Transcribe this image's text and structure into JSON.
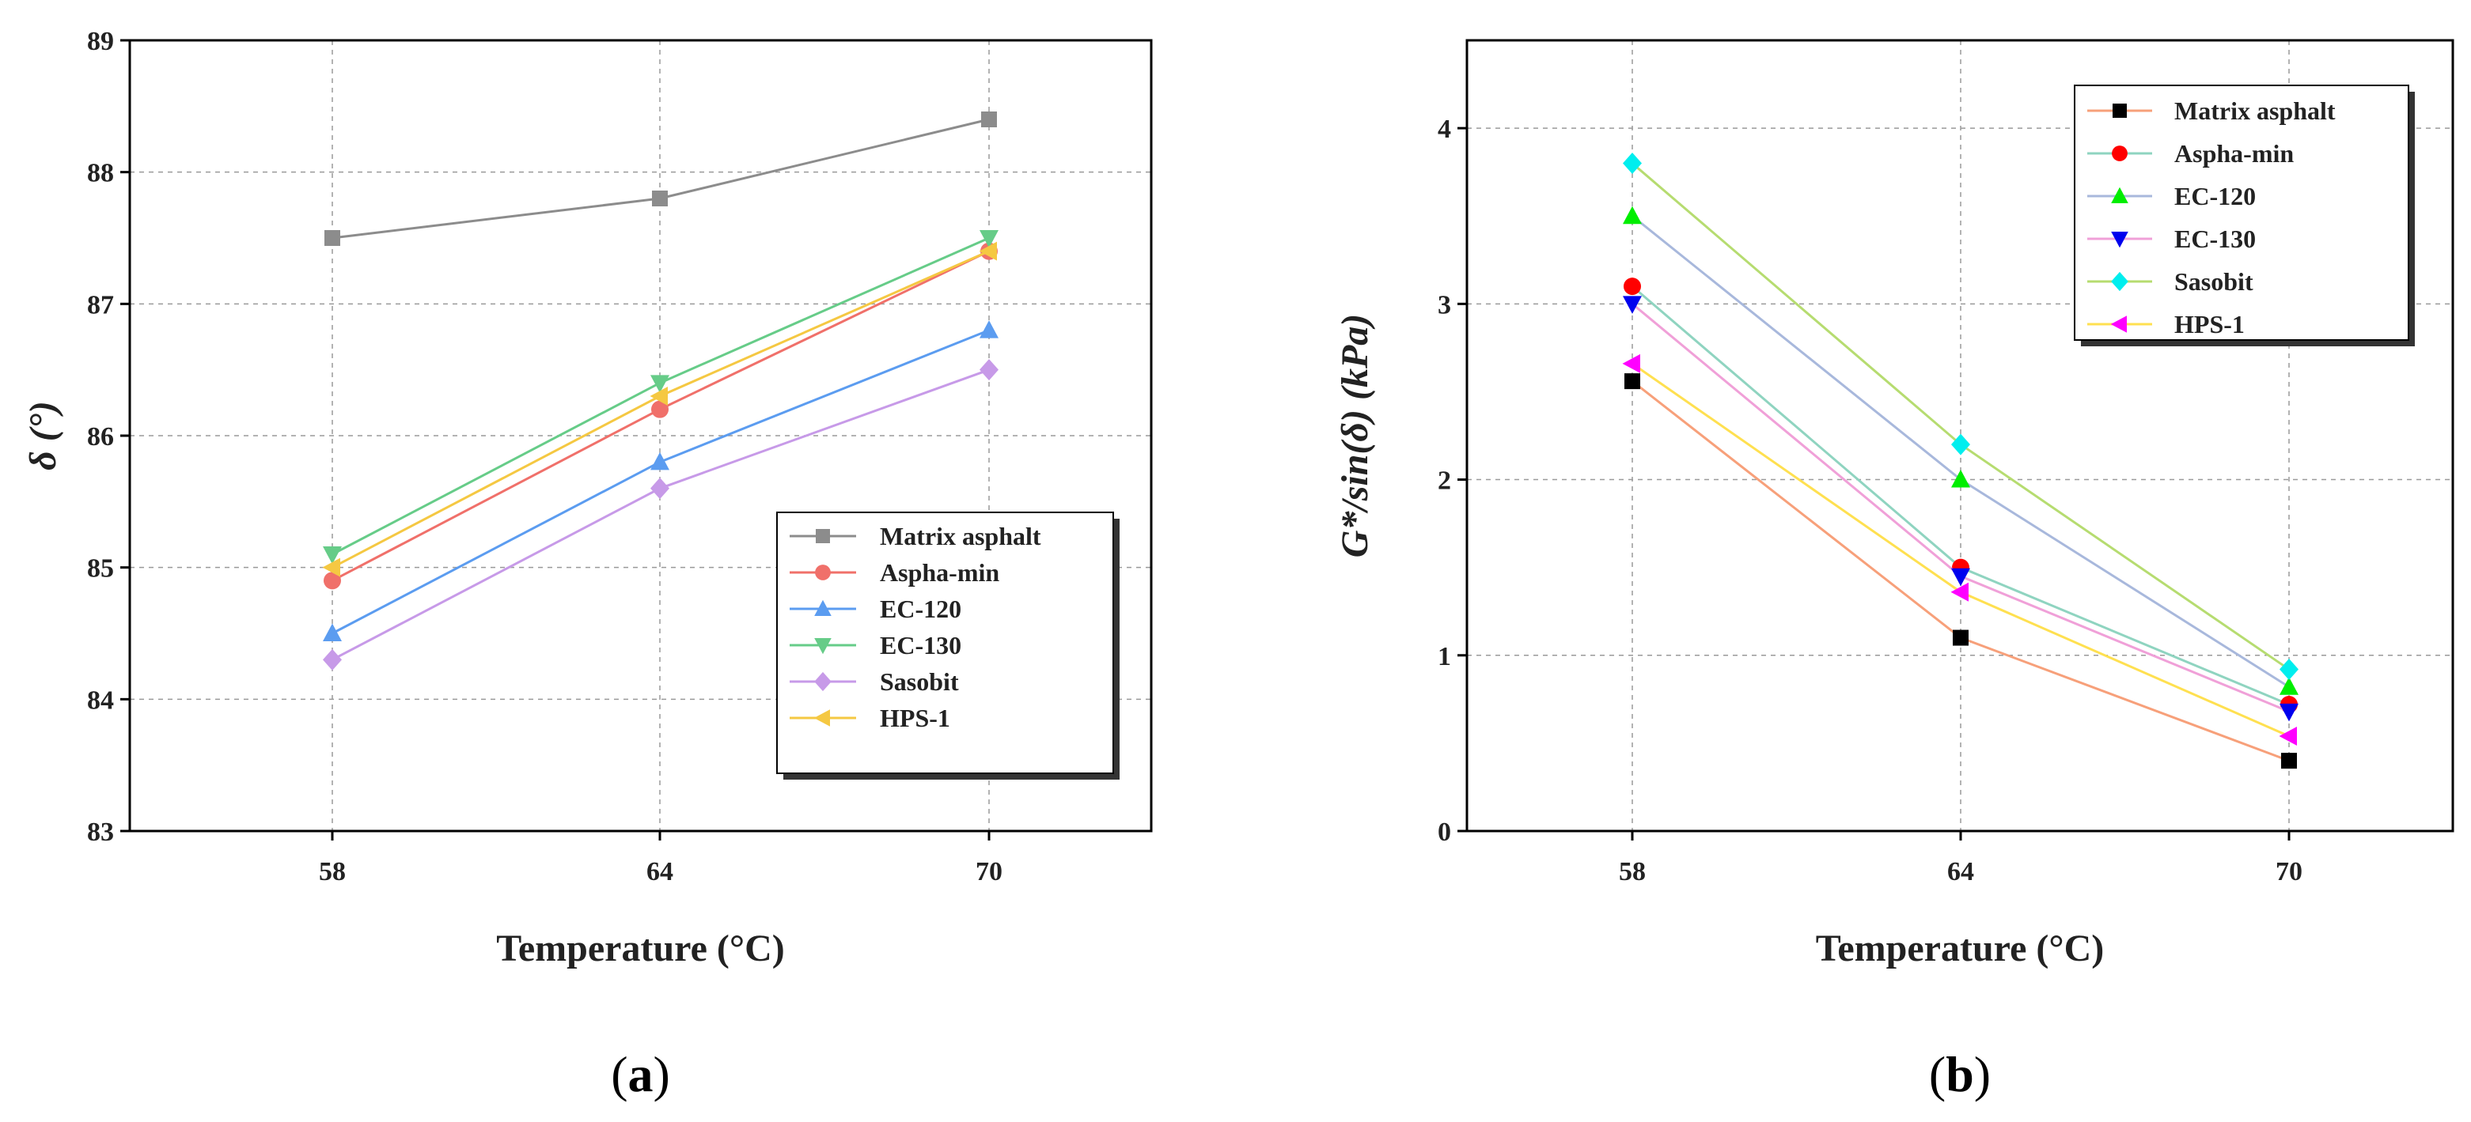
{
  "chart_data": [
    {
      "type": "line",
      "panel_label": "a",
      "categories": [
        "58",
        "64",
        "70"
      ],
      "xlabel": "Temperature (°C)",
      "ylabel": "δ (°)",
      "ylim": [
        83,
        89
      ],
      "yticks": [
        "83",
        "84",
        "85",
        "86",
        "87",
        "88",
        "89"
      ],
      "grid": true,
      "legend_position": "bottom-right",
      "series": [
        {
          "name": "Matrix asphalt",
          "values": [
            87.5,
            87.8,
            88.4
          ],
          "color": "#8c8c8c",
          "marker": "square"
        },
        {
          "name": "Aspha-min",
          "values": [
            84.9,
            86.2,
            87.4
          ],
          "color": "#f0706a",
          "marker": "circle"
        },
        {
          "name": "EC-120",
          "values": [
            84.5,
            85.8,
            86.8
          ],
          "color": "#5b9cf0",
          "marker": "triangle-up"
        },
        {
          "name": "EC-130",
          "values": [
            85.1,
            86.4,
            87.5
          ],
          "color": "#66cc88",
          "marker": "triangle-down"
        },
        {
          "name": "Sasobit",
          "values": [
            84.3,
            85.6,
            86.5
          ],
          "color": "#c79ae8",
          "marker": "diamond"
        },
        {
          "name": "HPS-1",
          "values": [
            85.0,
            86.3,
            87.4
          ],
          "color": "#f5c842",
          "marker": "triangle-left"
        }
      ]
    },
    {
      "type": "line",
      "panel_label": "b",
      "categories": [
        "58",
        "64",
        "70"
      ],
      "xlabel": "Temperature (°C)",
      "ylabel": "G*/sin(δ) (kPa)",
      "ylim": [
        0,
        4.5
      ],
      "yticks": [
        "0",
        "1",
        "2",
        "3",
        "4"
      ],
      "grid": true,
      "legend_position": "top-right",
      "series": [
        {
          "name": "Matrix asphalt",
          "values": [
            2.56,
            1.1,
            0.4
          ],
          "color": "#f7a07a",
          "marker_color": "#000000",
          "marker": "square"
        },
        {
          "name": "Aspha-min",
          "values": [
            3.1,
            1.5,
            0.72
          ],
          "color": "#8fd4c0",
          "marker_color": "#ff0000",
          "marker": "circle"
        },
        {
          "name": "EC-120",
          "values": [
            3.5,
            2.0,
            0.82
          ],
          "color": "#a8b8dc",
          "marker_color": "#00ee00",
          "marker": "triangle-up"
        },
        {
          "name": "EC-130",
          "values": [
            3.0,
            1.45,
            0.68
          ],
          "color": "#f0a0d8",
          "marker_color": "#0000ee",
          "marker": "triangle-down"
        },
        {
          "name": "Sasobit",
          "values": [
            3.8,
            2.2,
            0.92
          ],
          "color": "#b6dc70",
          "marker_color": "#00eeee",
          "marker": "diamond"
        },
        {
          "name": "HPS-1",
          "values": [
            2.66,
            1.36,
            0.54
          ],
          "color": "#ffe050",
          "marker_color": "#ff00ff",
          "marker": "triangle-left"
        }
      ]
    }
  ]
}
